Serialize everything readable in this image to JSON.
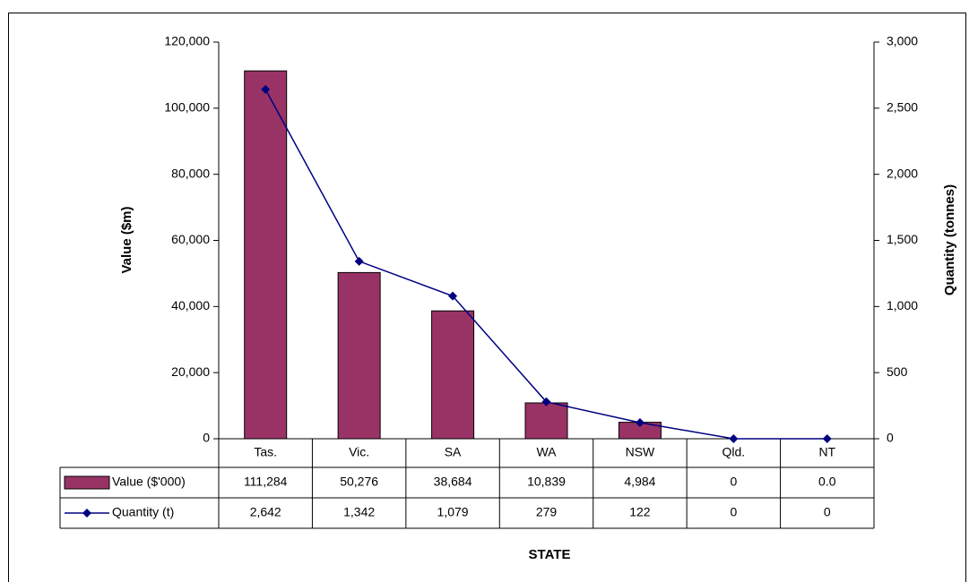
{
  "chart_data": {
    "type": "bar",
    "categories": [
      "Tas.",
      "Vic.",
      "SA",
      "WA",
      "NSW",
      "Qld.",
      "NT"
    ],
    "series": [
      {
        "name": "Value ($'000)",
        "type": "bar",
        "color": "#993366",
        "values": [
          111284,
          50276,
          38684,
          10839,
          4984,
          0,
          0.0
        ],
        "value_labels": [
          "111,284",
          "50,276",
          "38,684",
          "10,839",
          "4,984",
          "0",
          "0.0"
        ]
      },
      {
        "name": "Quantity (t)",
        "type": "line",
        "axis": "y2",
        "color": "#000080",
        "values": [
          2642,
          1342,
          1079,
          279,
          122,
          0,
          0
        ],
        "value_labels": [
          "2,642",
          "1,342",
          "1,079",
          "279",
          "122",
          "0",
          "0"
        ]
      }
    ],
    "ylabel": "Value ($m)",
    "y2label": "Quantity (tonnes)",
    "xlabel": "STATE",
    "ylim": [
      0,
      120000
    ],
    "yticks": [
      0,
      {
        "value": 20000,
        "label": "20,000"
      },
      {
        "value": 40000,
        "label": "40,000"
      },
      {
        "value": 60000,
        "label": "60,000"
      },
      {
        "value": 80000,
        "label": "80,000"
      },
      {
        "value": 100000,
        "label": "100,000"
      },
      {
        "value": 120000,
        "label": "120,000"
      }
    ],
    "y2lim": [
      0,
      3000
    ],
    "y2ticks": [
      0,
      500,
      {
        "value": 1000,
        "label": "1,000"
      },
      {
        "value": 1500,
        "label": "1,500"
      },
      {
        "value": 2000,
        "label": "2,000"
      },
      {
        "value": 2500,
        "label": "2,500"
      },
      {
        "value": 3000,
        "label": "3,000"
      }
    ],
    "grid": false
  }
}
